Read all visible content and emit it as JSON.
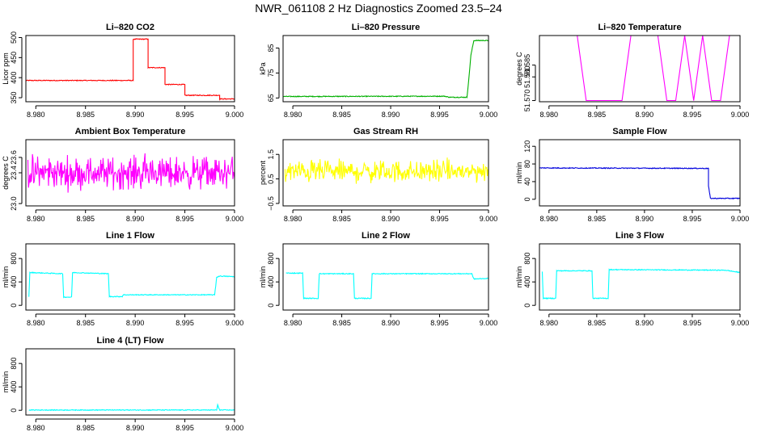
{
  "page": {
    "title": "NWR_061108  2 Hz Diagnostics Zoomed 23.5–24"
  },
  "chart_data": [
    {
      "id": "li820-co2",
      "type": "line",
      "title": "Li–820 CO2",
      "ylabel": "Licor ppm",
      "color": "#ff0000",
      "xlim": [
        8.979,
        9.0
      ],
      "ylim": [
        340,
        505
      ],
      "x_ticks": [
        8.98,
        8.985,
        8.99,
        8.995,
        9.0
      ],
      "x_tick_labels": [
        "8.980",
        "8.985",
        "8.990",
        "8.995",
        "9.000"
      ],
      "y_ticks": [
        350,
        400,
        450,
        500
      ],
      "y_tick_labels": [
        "350",
        "400",
        "450",
        "500"
      ],
      "series": [
        {
          "x": [
            8.979,
            8.9898,
            8.9898,
            8.9913,
            8.9913,
            8.993,
            8.993,
            8.995,
            8.995,
            8.9985,
            8.9985,
            9.0
          ],
          "y": [
            393,
            393,
            496,
            496,
            425,
            425,
            383,
            383,
            356,
            356,
            347,
            347
          ]
        }
      ]
    },
    {
      "id": "li820-pressure",
      "type": "line",
      "title": "Li–820 Pressure",
      "ylabel": "kPa",
      "color": "#00b000",
      "xlim": [
        8.979,
        9.0
      ],
      "ylim": [
        63.5,
        90
      ],
      "x_ticks": [
        8.98,
        8.985,
        8.99,
        8.995,
        9.0
      ],
      "x_tick_labels": [
        "8.980",
        "8.985",
        "8.990",
        "8.995",
        "9.000"
      ],
      "y_ticks": [
        65,
        75,
        85
      ],
      "y_tick_labels": [
        "65",
        "75",
        "85"
      ],
      "series": [
        {
          "x": [
            8.979,
            8.9955,
            8.996,
            8.9978,
            8.998,
            8.9982,
            8.9985,
            9.0
          ],
          "y": [
            65.6,
            65.7,
            65.3,
            65.3,
            73,
            82,
            88,
            88
          ]
        }
      ]
    },
    {
      "id": "li820-temperature",
      "type": "line",
      "title": "Li–820 Temperature",
      "ylabel": "degrees C",
      "color": "#ff00ff",
      "xlim": [
        8.979,
        9.0
      ],
      "ylim": [
        51.5695,
        51.5975
      ],
      "x_ticks": [
        8.98,
        8.985,
        8.99,
        8.995,
        9.0
      ],
      "x_tick_labels": [
        "8.980",
        "8.985",
        "8.990",
        "8.995",
        "9.000"
      ],
      "y_ticks": [
        51.57,
        51.58,
        51.585
      ],
      "y_tick_labels": [
        "51.570",
        "51.580",
        "51.585"
      ],
      "series": [
        {
          "levels": [
            51.57,
            51.5975
          ],
          "x_start": 8.9792,
          "x_end": 8.9989,
          "rate_hz": 2
        }
      ]
    },
    {
      "id": "ambient-box-temperature",
      "type": "line",
      "title": "Ambient Box Temperature",
      "ylabel": "degrees C",
      "color": "#ff00ff",
      "xlim": [
        8.979,
        9.0
      ],
      "ylim": [
        22.97,
        23.83
      ],
      "x_ticks": [
        8.98,
        8.985,
        8.99,
        8.995,
        9.0
      ],
      "x_tick_labels": [
        "8.980",
        "8.985",
        "8.990",
        "8.995",
        "9.000"
      ],
      "y_ticks": [
        23.0,
        23.4,
        23.6
      ],
      "y_tick_labels": [
        "23.0",
        "23.4",
        "23.6"
      ],
      "series": [
        {
          "mean": 23.4,
          "noise": 0.1,
          "x_start": 8.9792,
          "x_end": 9.0,
          "rate_hz": 2
        }
      ]
    },
    {
      "id": "gas-stream-rh",
      "type": "line",
      "title": "Gas Stream RH",
      "ylabel": "percent",
      "color": "#ffff00",
      "xlim": [
        8.979,
        9.0
      ],
      "ylim": [
        -0.6,
        2.1
      ],
      "x_ticks": [
        8.98,
        8.985,
        8.99,
        8.995,
        9.0
      ],
      "x_tick_labels": [
        "8.980",
        "8.985",
        "8.990",
        "8.995",
        "9.000"
      ],
      "y_ticks": [
        -0.5,
        0.5,
        1.5
      ],
      "y_tick_labels": [
        "−0.5",
        "0.5",
        "1.5"
      ],
      "series": [
        {
          "mean": 0.8,
          "noise": 0.22,
          "x_start": 8.9792,
          "x_end": 9.0,
          "rate_hz": 2
        }
      ]
    },
    {
      "id": "sample-flow",
      "type": "line",
      "title": "Sample Flow",
      "ylabel": "ml/min",
      "color": "#0000dd",
      "xlim": [
        8.979,
        9.0
      ],
      "ylim": [
        -15,
        135
      ],
      "x_ticks": [
        8.98,
        8.985,
        8.99,
        8.995,
        9.0
      ],
      "x_tick_labels": [
        "8.980",
        "8.985",
        "8.990",
        "8.995",
        "9.000"
      ],
      "y_ticks": [
        0,
        40,
        80,
        120
      ],
      "y_tick_labels": [
        "0",
        "40",
        "80",
        "120"
      ],
      "series": [
        {
          "x": [
            8.979,
            8.9967,
            8.9967,
            8.9969,
            9.0
          ],
          "y": [
            71,
            70,
            30,
            2,
            2
          ]
        }
      ]
    },
    {
      "id": "line-1-flow",
      "type": "line",
      "title": "Line 1 Flow",
      "ylabel": "ml/min",
      "color": "#00ffff",
      "xlim": [
        8.979,
        9.0
      ],
      "ylim": [
        -80,
        1050
      ],
      "x_ticks": [
        8.98,
        8.985,
        8.99,
        8.995,
        9.0
      ],
      "x_tick_labels": [
        "8.980",
        "8.985",
        "8.990",
        "8.995",
        "9.000"
      ],
      "y_ticks": [
        0,
        400,
        800
      ],
      "y_tick_labels": [
        "0",
        "400",
        "800"
      ],
      "series": [
        {
          "x": [
            8.9793,
            8.9794,
            8.9827,
            8.9828,
            8.9836,
            8.9837,
            8.9873,
            8.9874,
            8.9887,
            8.9888,
            8.998,
            8.9982,
            8.9985,
            9.0
          ],
          "y": [
            150,
            560,
            540,
            140,
            140,
            560,
            540,
            150,
            150,
            180,
            180,
            480,
            500,
            490
          ]
        }
      ]
    },
    {
      "id": "line-2-flow",
      "type": "line",
      "title": "Line 2 Flow",
      "ylabel": "ml/min",
      "color": "#00ffff",
      "xlim": [
        8.979,
        9.0
      ],
      "ylim": [
        -80,
        1050
      ],
      "x_ticks": [
        8.98,
        8.985,
        8.99,
        8.995,
        9.0
      ],
      "x_tick_labels": [
        "8.980",
        "8.985",
        "8.990",
        "8.995",
        "9.000"
      ],
      "y_ticks": [
        0,
        400,
        800
      ],
      "y_tick_labels": [
        "0",
        "400",
        "800"
      ],
      "series": [
        {
          "x": [
            8.9793,
            8.981,
            8.9811,
            8.9826,
            8.9827,
            8.9862,
            8.9863,
            8.988,
            8.9881,
            8.9983,
            8.9985,
            9.0
          ],
          "y": [
            550,
            550,
            120,
            120,
            540,
            540,
            120,
            120,
            540,
            540,
            450,
            460
          ]
        }
      ]
    },
    {
      "id": "line-3-flow",
      "type": "line",
      "title": "Line 3 Flow",
      "ylabel": "ml/min",
      "color": "#00ffff",
      "xlim": [
        8.979,
        9.0
      ],
      "ylim": [
        -80,
        1050
      ],
      "x_ticks": [
        8.98,
        8.985,
        8.99,
        8.995,
        9.0
      ],
      "x_tick_labels": [
        "8.980",
        "8.985",
        "8.990",
        "8.995",
        "9.000"
      ],
      "y_ticks": [
        0,
        400,
        800
      ],
      "y_tick_labels": [
        "0",
        "400",
        "800"
      ],
      "series": [
        {
          "x": [
            8.9793,
            8.9794,
            8.9807,
            8.9808,
            8.9845,
            8.9846,
            8.9862,
            8.9863,
            8.9985,
            9.0
          ],
          "y": [
            580,
            120,
            120,
            590,
            590,
            120,
            120,
            610,
            600,
            560
          ]
        }
      ]
    },
    {
      "id": "line-4-lt-flow",
      "type": "line",
      "title": "Line 4 (LT) Flow",
      "ylabel": "ml/min",
      "color": "#00ffff",
      "xlim": [
        8.979,
        9.0
      ],
      "ylim": [
        -80,
        1050
      ],
      "x_ticks": [
        8.98,
        8.985,
        8.99,
        8.995,
        9.0
      ],
      "x_tick_labels": [
        "8.980",
        "8.985",
        "8.990",
        "8.995",
        "9.000"
      ],
      "y_ticks": [
        0,
        400,
        800
      ],
      "y_tick_labels": [
        "0",
        "400",
        "800"
      ],
      "series": [
        {
          "x": [
            8.9793,
            8.9982,
            8.9983,
            8.9985,
            9.0
          ],
          "y": [
            5,
            5,
            90,
            5,
            5
          ]
        }
      ]
    }
  ]
}
